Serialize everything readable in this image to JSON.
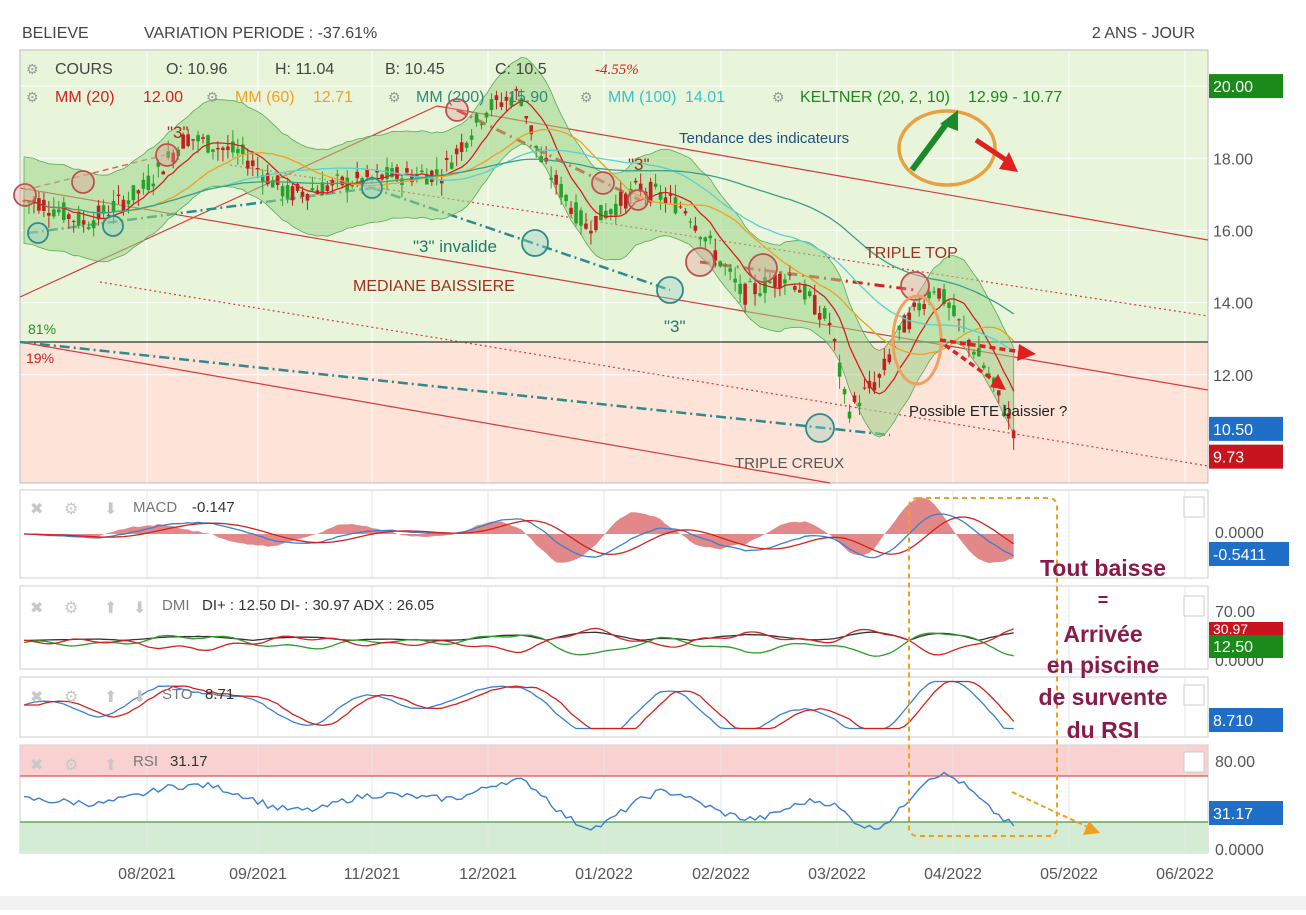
{
  "header": {
    "ticker": "BELIEVE",
    "variation": "VARIATION PERIODE : -37.61%",
    "period": "2 ANS - JOUR"
  },
  "legend": {
    "cours_label": "COURS",
    "open": "O: 10.96",
    "high": "H: 11.04",
    "low": "B: 10.45",
    "close": "C: 10.5",
    "change": "-4.55%",
    "mm20_label": "MM (20)",
    "mm20_value": "12.00",
    "mm60_label": "MM (60)",
    "mm60_value": "12.71",
    "mm200_label": "MM (200)",
    "mm200_value": "15.90",
    "mm100_label": "MM (100)",
    "mm100_value": "14.01",
    "keltner_label": "KELTNER (20, 2, 10)",
    "keltner_value": "12.99 - 10.77"
  },
  "annotations": {
    "three_1": "\"3\"",
    "three_2": "\"3\"",
    "three_3": "\"3\"",
    "three_invalide": "\"3\" invalide",
    "tendance": "Tendance des indicateurs",
    "triple_top": "TRIPLE TOP",
    "mediane": "MEDIANE BAISSIERE",
    "pct_81": "81%",
    "pct_19": "19%",
    "ete": "Possible ETE baissier ?",
    "triple_creux": "TRIPLE CREUX",
    "side_note": [
      "Tout baisse",
      "=",
      "Arrivée",
      "en piscine",
      "de survente",
      "du RSI"
    ]
  },
  "price_axis": {
    "ticks": [
      "20.00",
      "18.00",
      "16.00",
      "14.00",
      "12.00"
    ],
    "last_price": "10.50",
    "stop_level": "9.73",
    "ticks_num": [
      20,
      18,
      16,
      14,
      12
    ],
    "last_price_num": 10.5,
    "stop_level_num": 9.73,
    "ymin": 9.0,
    "ymax": 21.0
  },
  "x_axis": {
    "labels": [
      "08/2021",
      "09/2021",
      "11/2021",
      "12/2021",
      "01/2022",
      "02/2022",
      "03/2022",
      "04/2022",
      "05/2022",
      "06/2022"
    ]
  },
  "panels": {
    "macd": {
      "label": "MACD",
      "value": "-0.147",
      "axis_top": "0.0000",
      "axis_badge": "-0.5411"
    },
    "dmi": {
      "label": "DMI",
      "value": "DI+ : 12.50 DI- : 30.97 ADX : 26.05",
      "axis_top": "70.00",
      "badge_red": "30.97",
      "badge_green": "12.50",
      "axis_bottom": "0.0000"
    },
    "sto": {
      "label": "STO",
      "value": "8.71",
      "axis_badge": "8.710"
    },
    "rsi": {
      "label": "RSI",
      "value": "31.17",
      "axis_top": "80.00",
      "axis_badge": "31.17",
      "axis_bottom": "0.0000"
    }
  },
  "colors": {
    "green_zone": "#e6f4d6",
    "red_zone": "#fde1d8",
    "band_fill": "#9dd488",
    "mm20": "#d62020",
    "mm60": "#f0a020",
    "mm200": "#3aa08a",
    "mm100": "#5ccfd0",
    "keltner": "#2a9d2a",
    "badge_green": "#1a8a1a",
    "badge_blue": "#1f6fc8",
    "badge_red": "#c8141e",
    "note": "#8b1a4a",
    "orange": "#f0a020"
  },
  "chart_data": {
    "type": "line",
    "title": "BELIEVE",
    "x": [
      "2021-07-01",
      "2021-07-15",
      "2021-08-01",
      "2021-08-15",
      "2021-09-01",
      "2021-09-15",
      "2021-10-01",
      "2021-10-15",
      "2021-11-01",
      "2021-11-15",
      "2021-11-25",
      "2021-12-01",
      "2021-12-15",
      "2022-01-01",
      "2022-01-15",
      "2022-02-01",
      "2022-02-15",
      "2022-02-28",
      "2022-03-05",
      "2022-03-15",
      "2022-03-22",
      "2022-04-01",
      "2022-04-15",
      "2022-04-25"
    ],
    "series": [
      {
        "name": "COURS",
        "values": [
          16.8,
          16.2,
          17.1,
          18.6,
          18.1,
          17.0,
          17.3,
          17.5,
          17.6,
          19.4,
          19.8,
          18.0,
          16.1,
          17.2,
          16.6,
          14.2,
          14.8,
          13.4,
          11.0,
          11.9,
          13.3,
          14.5,
          12.4,
          10.5
        ]
      }
    ],
    "ylim": [
      9,
      21
    ],
    "xlabel": "",
    "ylabel": ""
  }
}
